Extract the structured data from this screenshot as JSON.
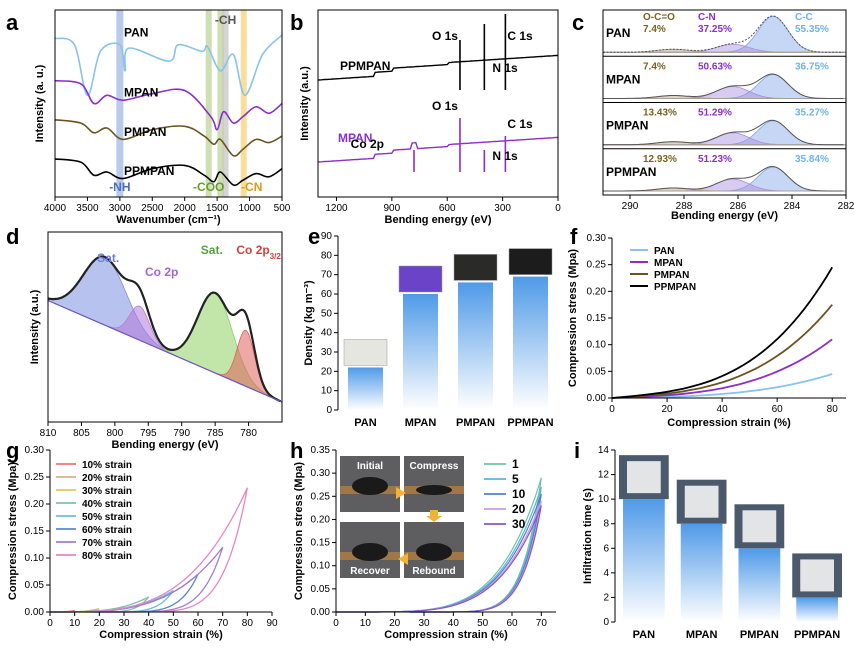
{
  "chart_data": [
    {
      "panel": "a",
      "type": "line",
      "xlabel": "Wavenumber (cm⁻¹)",
      "ylabel": "Intensity (a. u.)",
      "xlim": [
        4000,
        500
      ],
      "xticks": [
        4000,
        3500,
        3000,
        2500,
        2000,
        1500,
        1000,
        500
      ],
      "series": [
        {
          "name": "PAN",
          "color": "#87c3ea",
          "points": [
            [
              4000,
              0.9
            ],
            [
              3700,
              0.86
            ],
            [
              3500,
              0.55
            ],
            [
              3300,
              0.82
            ],
            [
              3000,
              0.86
            ],
            [
              2920,
              0.7
            ],
            [
              2860,
              0.84
            ],
            [
              2240,
              0.76
            ],
            [
              2100,
              0.86
            ],
            [
              1730,
              0.82
            ],
            [
              1650,
              0.85
            ],
            [
              1450,
              0.7
            ],
            [
              1250,
              0.8
            ],
            [
              1070,
              0.55
            ],
            [
              800,
              0.8
            ],
            [
              500,
              0.92
            ]
          ]
        },
        {
          "name": "MPAN",
          "color": "#8a2fc9",
          "points": [
            [
              4000,
              0.64
            ],
            [
              3600,
              0.62
            ],
            [
              3400,
              0.5
            ],
            [
              3200,
              0.55
            ],
            [
              2950,
              0.52
            ],
            [
              2500,
              0.56
            ],
            [
              2000,
              0.58
            ],
            [
              1600,
              0.42
            ],
            [
              1500,
              0.34
            ],
            [
              1400,
              0.45
            ],
            [
              1250,
              0.38
            ],
            [
              1100,
              0.42
            ],
            [
              900,
              0.48
            ],
            [
              700,
              0.44
            ],
            [
              500,
              0.5
            ]
          ]
        },
        {
          "name": "PMPAN",
          "color": "#6b5320",
          "points": [
            [
              4000,
              0.4
            ],
            [
              3600,
              0.38
            ],
            [
              3400,
              0.32
            ],
            [
              3200,
              0.35
            ],
            [
              2950,
              0.28
            ],
            [
              2500,
              0.34
            ],
            [
              2000,
              0.36
            ],
            [
              1700,
              0.3
            ],
            [
              1550,
              0.25
            ],
            [
              1450,
              0.28
            ],
            [
              1250,
              0.18
            ],
            [
              1100,
              0.22
            ],
            [
              900,
              0.28
            ],
            [
              700,
              0.26
            ],
            [
              500,
              0.3
            ]
          ]
        },
        {
          "name": "PPMPAN",
          "color": "#000000",
          "points": [
            [
              4000,
              0.16
            ],
            [
              3600,
              0.14
            ],
            [
              3400,
              0.06
            ],
            [
              3200,
              0.08
            ],
            [
              2950,
              0.04
            ],
            [
              2500,
              0.1
            ],
            [
              2000,
              0.12
            ],
            [
              1700,
              0.06
            ],
            [
              1550,
              0.02
            ],
            [
              1450,
              0.08
            ],
            [
              1250,
              0.0
            ],
            [
              1100,
              0.03
            ],
            [
              900,
              0.07
            ],
            [
              700,
              0.05
            ],
            [
              500,
              0.1
            ]
          ]
        }
      ],
      "bands": [
        {
          "label": "-NH",
          "x": 3000,
          "color": "#7f9fd9"
        },
        {
          "label": "-COO",
          "x": 1630,
          "color": "#a6c774"
        },
        {
          "label": "",
          "x": 1450,
          "color": "#a6c774"
        },
        {
          "label": "-CH",
          "x": 1370,
          "color": "#b0b0b0"
        },
        {
          "label": "-CN",
          "x": 1090,
          "color": "#f3c24a"
        }
      ]
    },
    {
      "panel": "b",
      "type": "line",
      "xlabel": "Bending energy (eV)",
      "ylabel": "Intensity (a.u.)",
      "xlim": [
        1300,
        0
      ],
      "xticks": [
        1200,
        900,
        600,
        300,
        0
      ],
      "series": [
        {
          "name": "PPMPAN",
          "color": "#000000"
        },
        {
          "name": "MPAN",
          "color": "#8a2fc9"
        }
      ],
      "peaks": [
        {
          "label": "O 1s",
          "x": 531
        },
        {
          "label": "N 1s",
          "x": 399
        },
        {
          "label": "C 1s",
          "x": 285
        },
        {
          "label": "Co 2p",
          "x": 780
        }
      ]
    },
    {
      "panel": "c",
      "type": "area",
      "xlabel": "Bending energy (eV)",
      "xlim": [
        291,
        282
      ],
      "xticks": [
        290,
        288,
        286,
        284,
        282
      ],
      "components": [
        "O-C=O",
        "C-N",
        "C-C"
      ],
      "rows": [
        {
          "name": "PAN",
          "o_c_o": "7.4%",
          "c_n": "37.25%",
          "c_c": "55.35%"
        },
        {
          "name": "MPAN",
          "o_c_o": "7.4%",
          "c_n": "50.63%",
          "c_c": "36.75%"
        },
        {
          "name": "PMPAN",
          "o_c_o": "13.43%",
          "c_n": "51.29%",
          "c_c": "35.27%"
        },
        {
          "name": "PPMPAN",
          "o_c_o": "12.93%",
          "c_n": "51.23%",
          "c_c": "35.84%"
        }
      ]
    },
    {
      "panel": "d",
      "type": "area",
      "xlabel": "Bending energy (eV)",
      "ylabel": "Intensity (a.u.)",
      "xlim": [
        810,
        775
      ],
      "xticks": [
        810,
        805,
        800,
        795,
        790,
        785,
        780
      ],
      "peaks": [
        {
          "label": "Sat.",
          "x": 802,
          "color": "#7b8fe0"
        },
        {
          "label": "Co 2p",
          "sub": "1/2",
          "x": 796,
          "color": "#b57ad8"
        },
        {
          "label": "Sat.",
          "x": 785,
          "color": "#8fcf63"
        },
        {
          "label": "Co 2p",
          "sub": "3/2",
          "x": 780.5,
          "color": "#e0605c"
        }
      ]
    },
    {
      "panel": "e",
      "type": "bar",
      "ylabel": "Density (kg m⁻³)",
      "ylim": [
        0,
        90
      ],
      "yticks": [
        0,
        10,
        20,
        30,
        40,
        50,
        60,
        70,
        80,
        90
      ],
      "categories": [
        "PAN",
        "MPAN",
        "PMPAN",
        "PPMPAN"
      ],
      "values": [
        22,
        60,
        66,
        69
      ]
    },
    {
      "panel": "f",
      "type": "line",
      "xlabel": "Compression strain (%)",
      "ylabel": "Compression stress (Mpa)",
      "xlim": [
        0,
        85
      ],
      "ylim": [
        0,
        0.3
      ],
      "xticks": [
        0,
        20,
        40,
        60,
        80
      ],
      "yticks": [
        0.0,
        0.05,
        0.1,
        0.15,
        0.2,
        0.25,
        0.3
      ],
      "series": [
        {
          "name": "PAN",
          "color": "#87c3ea",
          "max": 0.045
        },
        {
          "name": "MPAN",
          "color": "#8a2fc9",
          "max": 0.11
        },
        {
          "name": "PMPAN",
          "color": "#6b5320",
          "max": 0.175
        },
        {
          "name": "PPMPAN",
          "color": "#000000",
          "max": 0.245
        }
      ]
    },
    {
      "panel": "g",
      "type": "line",
      "xlabel": "Compression strain (%)",
      "ylabel": "Compression stress (Mpa)",
      "xlim": [
        0,
        90
      ],
      "ylim": [
        0,
        0.3
      ],
      "xticks": [
        0,
        10,
        20,
        30,
        40,
        50,
        60,
        70,
        80,
        90
      ],
      "yticks": [
        0.0,
        0.05,
        0.1,
        0.15,
        0.2,
        0.25,
        0.3
      ],
      "series": [
        {
          "name": "10% strain",
          "color": "#e8767a",
          "strain": 10,
          "max": 0.003
        },
        {
          "name": "20% strain",
          "color": "#d9b27c",
          "strain": 20,
          "max": 0.006
        },
        {
          "name": "30% strain",
          "color": "#e5c85a",
          "strain": 30,
          "max": 0.01
        },
        {
          "name": "40% strain",
          "color": "#7cc3a8",
          "strain": 40,
          "max": 0.028
        },
        {
          "name": "50% strain",
          "color": "#6fbbe0",
          "strain": 50,
          "max": 0.04
        },
        {
          "name": "60% strain",
          "color": "#5b86c9",
          "strain": 60,
          "max": 0.07
        },
        {
          "name": "70% strain",
          "color": "#a07ed6",
          "strain": 70,
          "max": 0.12
        },
        {
          "name": "80% strain",
          "color": "#e387c7",
          "strain": 80,
          "max": 0.23
        }
      ]
    },
    {
      "panel": "h",
      "type": "line",
      "xlabel": "Compression strain (%)",
      "ylabel": "Compression stress (Mpa)",
      "xlim": [
        0,
        75
      ],
      "ylim": [
        0,
        0.35
      ],
      "xticks": [
        0,
        10,
        20,
        30,
        40,
        50,
        60,
        70
      ],
      "yticks": [
        0.0,
        0.05,
        0.1,
        0.15,
        0.2,
        0.25,
        0.3,
        0.35
      ],
      "series": [
        {
          "name": "1",
          "color": "#6fc2a0",
          "max": 0.29
        },
        {
          "name": "5",
          "color": "#5fb0e0",
          "max": 0.27
        },
        {
          "name": "10",
          "color": "#4f7fd0",
          "max": 0.255
        },
        {
          "name": "20",
          "color": "#c89ae6",
          "max": 0.24
        },
        {
          "name": "30",
          "color": "#8a55c8",
          "max": 0.23
        }
      ],
      "insets": [
        "Initial",
        "Compress",
        "Recover",
        "Rebound"
      ]
    },
    {
      "panel": "i",
      "type": "bar",
      "ylabel": "Infiltration time (s)",
      "ylim": [
        0,
        14
      ],
      "yticks": [
        0,
        2,
        4,
        6,
        8,
        10,
        12,
        14
      ],
      "categories": [
        "PAN",
        "MPAN",
        "PMPAN",
        "PPMPAN"
      ],
      "values": [
        10,
        8,
        6,
        2
      ]
    }
  ]
}
